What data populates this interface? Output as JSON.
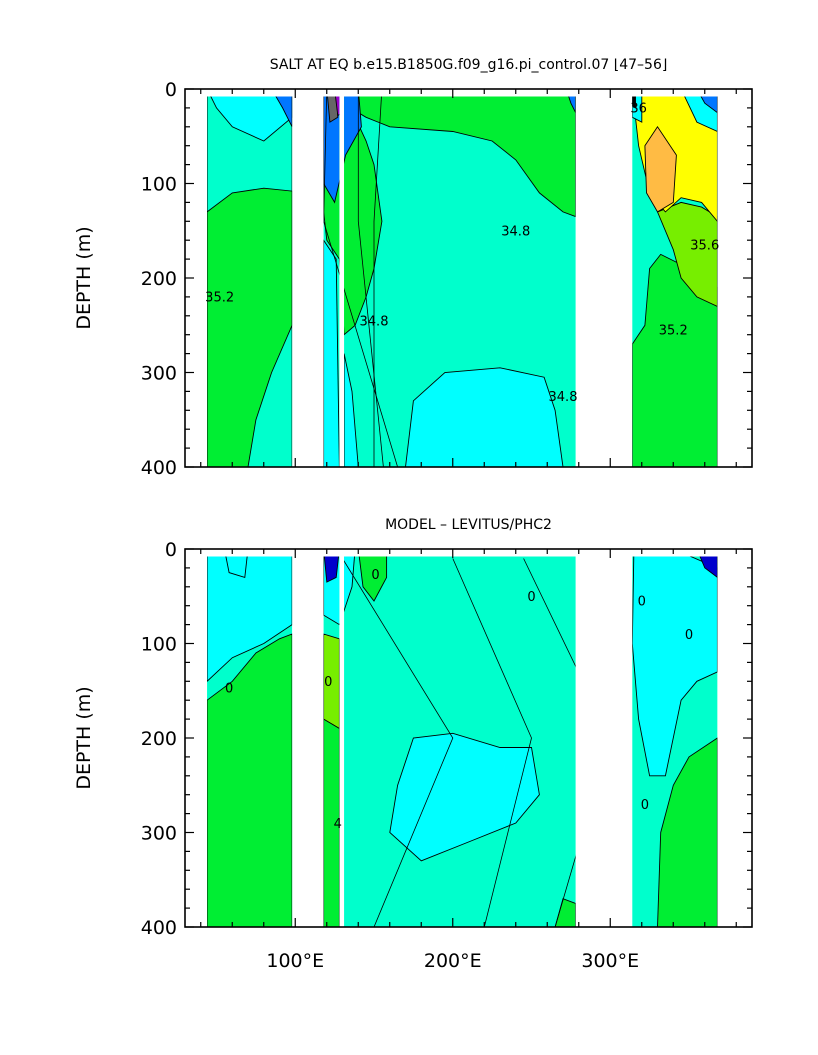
{
  "chart_data": [
    {
      "type": "heatmap",
      "title": "SALT AT EQ b.e15.B1850G.f09_g16.pi_control.07 ⌊47–56⌋",
      "xlabel": "",
      "ylabel": "DEPTH (m)",
      "xlim": [
        30,
        390
      ],
      "ylim": [
        400,
        0
      ],
      "y_reversed": true,
      "yticks": [
        0,
        100,
        200,
        300,
        400
      ],
      "ytick_labels": [
        "0",
        "100",
        "200",
        "300",
        "400"
      ],
      "xticks": [],
      "xtick_labels": [],
      "land_gaps_x": [
        [
          98,
          118
        ],
        [
          128,
          131
        ],
        [
          278,
          314
        ]
      ],
      "ocean_segments_x": [
        [
          44,
          98
        ],
        [
          118,
          128
        ],
        [
          131,
          278
        ],
        [
          314,
          368
        ]
      ],
      "colors": {
        "c340": "#00ffff",
        "c345": "#00ffcc",
        "c350": "#00ee33",
        "c355": "#77ee00",
        "c360": "#ffff00",
        "c365": "#ffbb44",
        "hi": "#0077ff",
        "lo": "#9900cc"
      },
      "contour_labels": [
        {
          "text": "35.2",
          "x": 52,
          "y": 225
        },
        {
          "text": "34.8",
          "x": 240,
          "y": 155
        },
        {
          "text": "34.8",
          "x": 150,
          "y": 250
        },
        {
          "text": "34.8",
          "x": 270,
          "y": 330
        },
        {
          "text": "36",
          "x": 318,
          "y": 25
        },
        {
          "text": "35.6",
          "x": 360,
          "y": 170
        },
        {
          "text": "35.2",
          "x": 340,
          "y": 260
        }
      ]
    },
    {
      "type": "heatmap",
      "title": "MODEL – LEVITUS/PHC2",
      "xlabel": "",
      "ylabel": "DEPTH (m)",
      "xlim": [
        30,
        390
      ],
      "ylim": [
        400,
        0
      ],
      "y_reversed": true,
      "yticks": [
        0,
        100,
        200,
        300,
        400
      ],
      "ytick_labels": [
        "0",
        "100",
        "200",
        "300",
        "400"
      ],
      "xticks": [
        100,
        200,
        300
      ],
      "xtick_labels": [
        "100°E",
        "200°E",
        "300°E"
      ],
      "land_gaps_x": [
        [
          98,
          118
        ],
        [
          128,
          131
        ],
        [
          278,
          314
        ]
      ],
      "ocean_segments_x": [
        [
          44,
          98
        ],
        [
          118,
          128
        ],
        [
          131,
          278
        ],
        [
          314,
          368
        ]
      ],
      "colors": {
        "neg": "#00ffff",
        "zero": "#00ffcc",
        "pos": "#00ee33",
        "pos2": "#77ee00",
        "lo": "#0000cc"
      },
      "contour_labels": [
        {
          "text": "0",
          "x": 58,
          "y": 152
        },
        {
          "text": "0",
          "x": 151,
          "y": 32
        },
        {
          "text": "0",
          "x": 250,
          "y": 55
        },
        {
          "text": "0",
          "x": 320,
          "y": 60
        },
        {
          "text": "0",
          "x": 350,
          "y": 95
        },
        {
          "text": "0",
          "x": 121,
          "y": 145
        },
        {
          "text": "0",
          "x": 322,
          "y": 275
        },
        {
          "text": "4",
          "x": 127,
          "y": 295
        }
      ]
    }
  ]
}
